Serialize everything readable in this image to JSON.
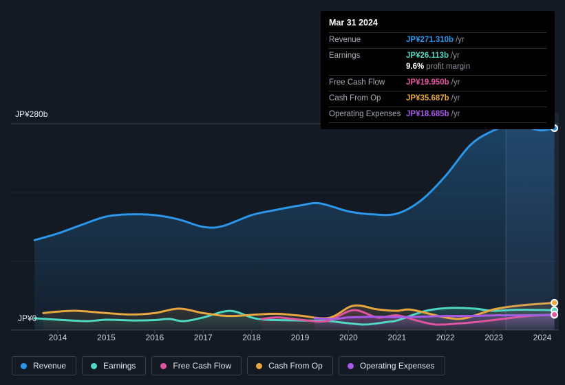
{
  "y_axis": {
    "top_label": "JP¥280b",
    "zero_label": "JP¥0"
  },
  "tooltip": {
    "date": "Mar 31 2024",
    "rows": [
      {
        "label": "Revenue",
        "value": "JP¥271.310b",
        "suffix": "/yr",
        "series": "revenue"
      },
      {
        "label": "Earnings",
        "value": "JP¥26.113b",
        "suffix": "/yr",
        "series": "earnings",
        "margin_value": "9.6%",
        "margin_label": "profit margin"
      },
      {
        "label": "Free Cash Flow",
        "value": "JP¥19.950b",
        "suffix": "/yr",
        "series": "fcf"
      },
      {
        "label": "Cash From Op",
        "value": "JP¥35.687b",
        "suffix": "/yr",
        "series": "cashop"
      },
      {
        "label": "Operating Expenses",
        "value": "JP¥18.685b",
        "suffix": "/yr",
        "series": "opex"
      }
    ]
  },
  "legend": {
    "items": [
      {
        "label": "Revenue",
        "series": "revenue"
      },
      {
        "label": "Earnings",
        "series": "earnings"
      },
      {
        "label": "Free Cash Flow",
        "series": "fcf"
      },
      {
        "label": "Cash From Op",
        "series": "cashop"
      },
      {
        "label": "Operating Expenses",
        "series": "opex"
      }
    ]
  },
  "chart_data": {
    "type": "area",
    "title": "",
    "units": "JP¥ billions per year",
    "x_ticks": [
      2014,
      2015,
      2016,
      2017,
      2018,
      2019,
      2020,
      2021,
      2022,
      2023,
      2024
    ],
    "y_max": 280,
    "y_gridlines_b": [
      0,
      93.3,
      186.7,
      280
    ],
    "ylabel_top": "JP¥280b",
    "ylabel_zero": "JP¥0",
    "highlight_from_year": 2023.25,
    "legend_position": "bottom",
    "series": [
      {
        "key": "revenue",
        "name": "Revenue",
        "color": "#2b96ea",
        "points": [
          [
            2013.52,
            122
          ],
          [
            2014,
            131
          ],
          [
            2014.5,
            143
          ],
          [
            2015,
            154
          ],
          [
            2015.5,
            157
          ],
          [
            2016,
            156
          ],
          [
            2016.5,
            150
          ],
          [
            2017,
            140
          ],
          [
            2017.4,
            141
          ],
          [
            2018,
            156
          ],
          [
            2018.5,
            163
          ],
          [
            2019,
            169
          ],
          [
            2019.4,
            172
          ],
          [
            2020,
            161
          ],
          [
            2020.5,
            157
          ],
          [
            2021,
            158
          ],
          [
            2021.5,
            176
          ],
          [
            2022,
            209
          ],
          [
            2022.5,
            250
          ],
          [
            2022.9,
            268
          ],
          [
            2023.3,
            277
          ],
          [
            2023.6,
            277
          ],
          [
            2023.95,
            271
          ],
          [
            2024.25,
            274
          ]
        ]
      },
      {
        "key": "earnings",
        "name": "Earnings",
        "color": "#50d8c4",
        "points": [
          [
            2013.52,
            16
          ],
          [
            2014,
            14
          ],
          [
            2014.6,
            12
          ],
          [
            2015,
            14
          ],
          [
            2015.6,
            13
          ],
          [
            2016,
            13.5
          ],
          [
            2016.3,
            15
          ],
          [
            2016.6,
            12
          ],
          [
            2017,
            17
          ],
          [
            2017.55,
            26
          ],
          [
            2018,
            17
          ],
          [
            2018.3,
            14
          ],
          [
            2019,
            13
          ],
          [
            2019.6,
            12
          ],
          [
            2020.3,
            7.5
          ],
          [
            2020.8,
            11
          ],
          [
            2021,
            13
          ],
          [
            2021.6,
            26
          ],
          [
            2022.1,
            30
          ],
          [
            2022.6,
            29
          ],
          [
            2023,
            26
          ],
          [
            2023.5,
            27.5
          ],
          [
            2024.25,
            27
          ]
        ]
      },
      {
        "key": "fcf",
        "name": "Free Cash Flow",
        "color": "#df549e",
        "points": [
          [
            2018.2,
            15
          ],
          [
            2018.55,
            17
          ],
          [
            2019,
            14
          ],
          [
            2019.55,
            12
          ],
          [
            2020.1,
            27
          ],
          [
            2020.6,
            17
          ],
          [
            2021,
            20
          ],
          [
            2021.4,
            13
          ],
          [
            2021.8,
            7.5
          ],
          [
            2022.3,
            9
          ],
          [
            2022.8,
            12
          ],
          [
            2023.3,
            16
          ],
          [
            2023.8,
            19.5
          ],
          [
            2024.25,
            21
          ]
        ]
      },
      {
        "key": "cashop",
        "name": "Cash From Op",
        "color": "#e8a640",
        "points": [
          [
            2013.7,
            23
          ],
          [
            2014,
            25
          ],
          [
            2014.4,
            26
          ],
          [
            2015,
            23
          ],
          [
            2015.5,
            21
          ],
          [
            2016,
            23
          ],
          [
            2016.5,
            29
          ],
          [
            2017,
            23
          ],
          [
            2017.5,
            19
          ],
          [
            2018,
            20.5
          ],
          [
            2018.5,
            22
          ],
          [
            2019,
            19.5
          ],
          [
            2019.6,
            16.5
          ],
          [
            2020.1,
            33
          ],
          [
            2020.6,
            28
          ],
          [
            2021,
            26
          ],
          [
            2021.3,
            27.5
          ],
          [
            2022,
            17
          ],
          [
            2022.4,
            16
          ],
          [
            2023,
            28
          ],
          [
            2023.5,
            33
          ],
          [
            2024.25,
            37
          ]
        ]
      },
      {
        "key": "opex",
        "name": "Operating Expenses",
        "color": "#a65ae6",
        "points": [
          [
            2019.3,
            16
          ],
          [
            2019.7,
            15
          ],
          [
            2020,
            17
          ],
          [
            2020.5,
            18
          ],
          [
            2021,
            17.5
          ],
          [
            2021.5,
            18
          ],
          [
            2022,
            19
          ],
          [
            2022.5,
            19
          ],
          [
            2023,
            20
          ],
          [
            2023.5,
            20
          ],
          [
            2024.25,
            20.5
          ]
        ]
      }
    ]
  }
}
